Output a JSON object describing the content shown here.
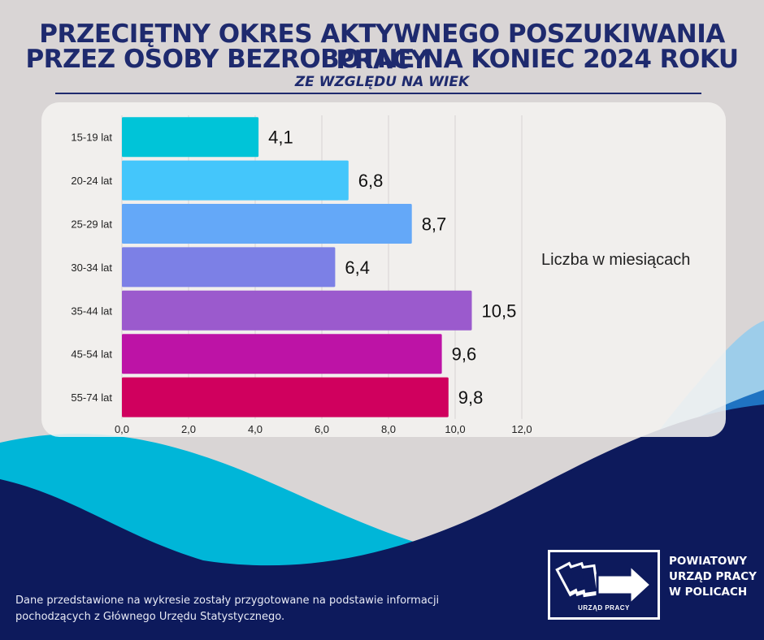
{
  "header": {
    "title_line1": "PRZECIĘTNY OKRES AKTYWNEGO POSZUKIWANIA PRACY",
    "title_line2": "PRZEZ OSOBY BEZROBOTNE NA KONIEC 2024 ROKU",
    "subtitle": "ZE WZGLĘDU NA WIEK"
  },
  "chart_data": {
    "type": "bar",
    "orientation": "horizontal",
    "categories": [
      "15-19 lat",
      "20-24 lat",
      "25-29 lat",
      "30-34 lat",
      "35-44 lat",
      "45-54 lat",
      "55-74 lat"
    ],
    "values": [
      4.1,
      6.8,
      8.7,
      6.4,
      10.5,
      9.6,
      9.8
    ],
    "value_labels": [
      "4,1",
      "6,8",
      "8,7",
      "6,4",
      "10,5",
      "9,6",
      "9,8"
    ],
    "bar_colors": [
      "#00c4d8",
      "#44c6fb",
      "#64a8f8",
      "#7c80e6",
      "#9b5acd",
      "#bd13a6",
      "#d0005e"
    ],
    "x_ticks": [
      "0,0",
      "2,0",
      "4,0",
      "6,0",
      "8,0",
      "10,0",
      "12,0"
    ],
    "xlim": [
      0,
      12
    ],
    "grid": true,
    "unit_label": "Liczba w miesiącach"
  },
  "footer": {
    "note_line1": "Dane przedstawione na wykresie zostały przygotowane na podstawie informacji",
    "note_line2": "pochodzących z Głównego Urzędu Statystycznego.",
    "logo_caption": "URZĄD PRACY",
    "org_line1": "POWIATOWY",
    "org_line2": "URZĄD PRACY",
    "org_line3": "W POLICACH"
  },
  "colors": {
    "navy": "#1e2a6e",
    "wave_dark": "#0d1a5c",
    "wave_cyan": "#00b6d8",
    "wave_blue": "#1f73c2"
  }
}
